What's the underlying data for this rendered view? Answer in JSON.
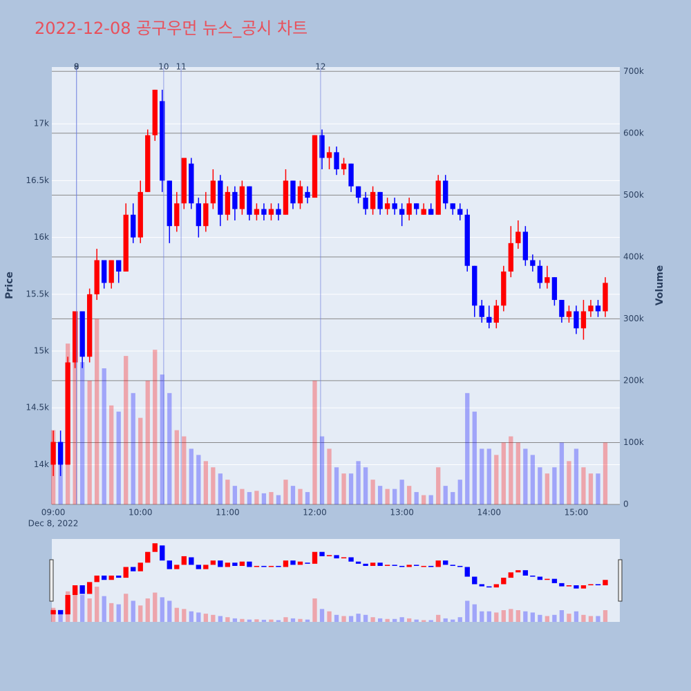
{
  "chart_data": {
    "type": "candlestick",
    "title": "2022-12-08 공구우먼 뉴스_공시 차트",
    "y_title": "Price",
    "y2_title": "Volume",
    "x_date_label": "Dec 8, 2022",
    "x": [
      "09:00",
      "09:05",
      "09:10",
      "09:15",
      "09:20",
      "09:25",
      "09:30",
      "09:35",
      "09:40",
      "09:45",
      "09:50",
      "09:55",
      "10:00",
      "10:05",
      "10:10",
      "10:15",
      "10:20",
      "10:25",
      "10:30",
      "10:35",
      "10:40",
      "10:45",
      "10:50",
      "10:55",
      "11:00",
      "11:05",
      "11:10",
      "11:15",
      "11:20",
      "11:25",
      "11:30",
      "11:35",
      "11:40",
      "11:45",
      "11:50",
      "11:55",
      "12:00",
      "12:05",
      "12:10",
      "12:15",
      "12:20",
      "12:25",
      "12:30",
      "12:35",
      "12:40",
      "12:45",
      "12:50",
      "12:55",
      "13:00",
      "13:05",
      "13:10",
      "13:15",
      "13:20",
      "13:25",
      "13:30",
      "13:35",
      "13:40",
      "13:45",
      "13:50",
      "13:55",
      "14:00",
      "14:05",
      "14:10",
      "14:15",
      "14:20",
      "14:25",
      "14:30",
      "14:35",
      "14:40",
      "14:45",
      "14:50",
      "14:55",
      "15:00",
      "15:05",
      "15:10",
      "15:15",
      "15:20"
    ],
    "open": [
      14000,
      14200,
      14000,
      14900,
      15350,
      14950,
      15500,
      15800,
      15600,
      15800,
      15700,
      16200,
      16000,
      16400,
      16900,
      17200,
      16500,
      16100,
      16300,
      16650,
      16300,
      16100,
      16300,
      16500,
      16200,
      16400,
      16250,
      16450,
      16200,
      16250,
      16200,
      16250,
      16200,
      16500,
      16300,
      16400,
      16350,
      16900,
      16700,
      16750,
      16600,
      16650,
      16450,
      16350,
      16250,
      16400,
      16250,
      16300,
      16250,
      16200,
      16300,
      16200,
      16250,
      16200,
      16500,
      16300,
      16250,
      16200,
      15750,
      15400,
      15300,
      15250,
      15400,
      15700,
      15950,
      16050,
      15800,
      15750,
      15600,
      15650,
      15450,
      15300,
      15350,
      15200,
      15350,
      15400,
      15350
    ],
    "high": [
      14300,
      14300,
      14950,
      15350,
      15350,
      15550,
      15900,
      15800,
      15800,
      15800,
      16300,
      16300,
      16500,
      16950,
      17300,
      17300,
      16500,
      16400,
      16700,
      16700,
      16350,
      16400,
      16600,
      16550,
      16450,
      16450,
      16500,
      16450,
      16300,
      16300,
      16300,
      16300,
      16600,
      16500,
      16500,
      16450,
      16900,
      16950,
      16800,
      16800,
      16700,
      16650,
      16450,
      16400,
      16450,
      16400,
      16350,
      16350,
      16300,
      16350,
      16300,
      16300,
      16300,
      16550,
      16550,
      16300,
      16300,
      16250,
      15750,
      15450,
      15400,
      15450,
      15750,
      16100,
      16150,
      16100,
      15850,
      15800,
      15750,
      15650,
      15450,
      15400,
      15400,
      15450,
      15450,
      15450,
      15650
    ],
    "low": [
      13900,
      13900,
      14000,
      14850,
      14850,
      14900,
      15450,
      15550,
      15550,
      15600,
      15700,
      15950,
      15950,
      16400,
      16850,
      16400,
      15950,
      16050,
      16250,
      16250,
      16000,
      16050,
      16250,
      16100,
      16150,
      16150,
      16200,
      16150,
      16150,
      16150,
      16150,
      16150,
      16200,
      16250,
      16250,
      16300,
      16350,
      16600,
      16600,
      16550,
      16550,
      16400,
      16300,
      16200,
      16200,
      16200,
      16200,
      16200,
      16100,
      16150,
      16200,
      16200,
      16200,
      16200,
      16250,
      16200,
      16150,
      15700,
      15300,
      15250,
      15200,
      15200,
      15350,
      15650,
      15900,
      15750,
      15700,
      15550,
      15550,
      15400,
      15250,
      15250,
      15150,
      15100,
      15300,
      15300,
      15300
    ],
    "close": [
      14200,
      14000,
      14900,
      15350,
      14950,
      15500,
      15800,
      15600,
      15800,
      15700,
      16200,
      16000,
      16400,
      16900,
      17300,
      16500,
      16100,
      16300,
      16700,
      16300,
      16100,
      16300,
      16500,
      16200,
      16400,
      16250,
      16450,
      16200,
      16250,
      16200,
      16250,
      16200,
      16500,
      16300,
      16450,
      16350,
      16900,
      16700,
      16750,
      16600,
      16650,
      16450,
      16350,
      16250,
      16400,
      16250,
      16300,
      16250,
      16200,
      16300,
      16250,
      16250,
      16200,
      16500,
      16300,
      16250,
      16200,
      15750,
      15400,
      15300,
      15250,
      15400,
      15700,
      15950,
      16050,
      15800,
      15750,
      15600,
      15650,
      15450,
      15300,
      15350,
      15200,
      15350,
      15400,
      15350,
      15600
    ],
    "volume": [
      120000,
      90000,
      260000,
      280000,
      230000,
      200000,
      300000,
      220000,
      160000,
      150000,
      240000,
      180000,
      140000,
      200000,
      250000,
      210000,
      180000,
      120000,
      110000,
      90000,
      80000,
      70000,
      60000,
      50000,
      40000,
      30000,
      25000,
      20000,
      22000,
      18000,
      20000,
      15000,
      40000,
      30000,
      25000,
      20000,
      200000,
      110000,
      90000,
      60000,
      50000,
      50000,
      70000,
      60000,
      40000,
      30000,
      25000,
      25000,
      40000,
      30000,
      20000,
      15000,
      15000,
      60000,
      30000,
      20000,
      40000,
      180000,
      150000,
      90000,
      90000,
      80000,
      100000,
      110000,
      100000,
      90000,
      80000,
      60000,
      50000,
      60000,
      100000,
      70000,
      90000,
      60000,
      50000,
      50000,
      100000
    ],
    "increasing_color": "#ff0000",
    "decreasing_color": "#0000ff",
    "xlim": [
      "08:59",
      "15:30"
    ],
    "xticks": [
      "09:00",
      "10:00",
      "11:00",
      "12:00",
      "13:00",
      "14:00",
      "15:00"
    ],
    "ylim": [
      13650,
      17500
    ],
    "yticks": [
      {
        "value": 14000,
        "label": "14k"
      },
      {
        "value": 14500,
        "label": "14.5k"
      },
      {
        "value": 15000,
        "label": "15k"
      },
      {
        "value": 15500,
        "label": "15.5k"
      },
      {
        "value": 16000,
        "label": "16k"
      },
      {
        "value": 16500,
        "label": "16.5k"
      },
      {
        "value": 17000,
        "label": "17k"
      }
    ],
    "y2lim": [
      0,
      707000
    ],
    "y2ticks": [
      0,
      {
        "value": 100000,
        "label": "100k"
      },
      {
        "value": 200000,
        "label": "200k"
      },
      {
        "value": 300000,
        "label": "300k"
      },
      {
        "value": 400000,
        "label": "400k"
      },
      {
        "value": 500000,
        "label": "500k"
      },
      {
        "value": 600000,
        "label": "600k"
      },
      {
        "value": 700000,
        "label": "700k"
      }
    ],
    "news": [
      {
        "x": "09:16",
        "label": "8"
      },
      {
        "x": "09:16",
        "label": "9"
      },
      {
        "x": "10:16",
        "label": "10"
      },
      {
        "x": "10:28",
        "label": "11"
      },
      {
        "x": "12:04",
        "label": "12"
      }
    ],
    "grid": true
  }
}
